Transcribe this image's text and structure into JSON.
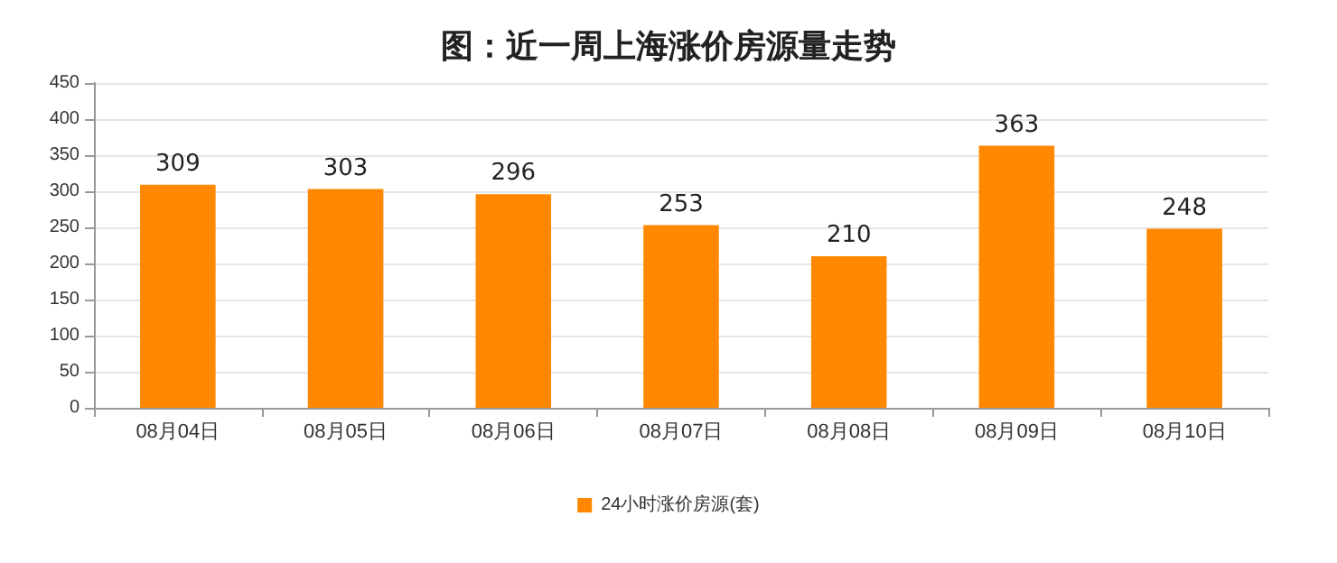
{
  "chart_data": {
    "type": "bar",
    "title": "图：近一周上海涨价房源量走势",
    "categories": [
      "08月04日",
      "08月05日",
      "08月06日",
      "08月07日",
      "08月08日",
      "08月09日",
      "08月10日"
    ],
    "series": [
      {
        "name": "24小时涨价房源(套)",
        "color": "#ff8800",
        "values": [
          309,
          303,
          296,
          253,
          210,
          363,
          248
        ]
      }
    ],
    "ylim": [
      0,
      450
    ],
    "yticks": [
      0,
      50,
      100,
      150,
      200,
      250,
      300,
      350,
      400,
      450
    ],
    "grid": "y",
    "legend": "bottom",
    "data_labels": true
  }
}
